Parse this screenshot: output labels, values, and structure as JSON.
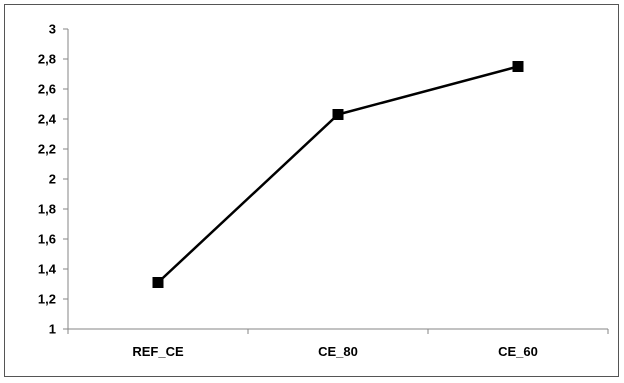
{
  "chart_data": {
    "type": "line",
    "title": "",
    "xlabel": "",
    "ylabel": "",
    "categories": [
      "REF_CE",
      "CE_80",
      "CE_60"
    ],
    "series": [
      {
        "values": [
          1.31,
          2.43,
          2.75
        ]
      }
    ],
    "ylim": [
      1,
      3
    ],
    "ytick_step": 0.2,
    "ytick_labels": [
      "1",
      "1,2",
      "1,4",
      "1,6",
      "1,8",
      "2",
      "2,2",
      "2,4",
      "2,6",
      "2,8",
      "3"
    ],
    "grid": false,
    "legend": "none",
    "marker": "square",
    "colors": {
      "line": "#000000",
      "marker": "#000000",
      "axis": "#868686",
      "frame": "#555555"
    }
  }
}
